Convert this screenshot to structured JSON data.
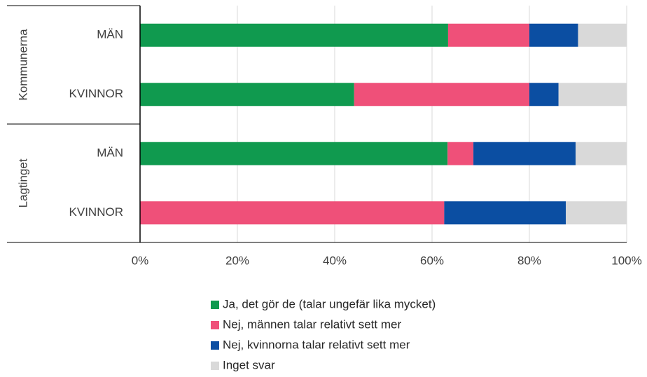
{
  "chart_data": {
    "type": "stacked-bar-horizontal",
    "groups": [
      "Kommunerna",
      "Lagtinget"
    ],
    "categories": [
      "MÄN",
      "KVINNOR",
      "MÄN",
      "KVINNOR"
    ],
    "series": [
      {
        "name": "Ja, det gör de (talar ungefär lika mycket)",
        "color": "#109a4f",
        "values": [
          63.3,
          44,
          63.2,
          0
        ]
      },
      {
        "name": "Nej, männen talar relativt sett mer",
        "color": "#ef5079",
        "values": [
          16.7,
          36,
          5.3,
          62.5
        ]
      },
      {
        "name": "Nej, kvinnorna talar relativt sett mer",
        "color": "#0b4ea2",
        "values": [
          10,
          6,
          21,
          25
        ]
      },
      {
        "name": "Inget svar",
        "color": "#d9d9d9",
        "values": [
          10,
          14,
          10.5,
          12.5
        ]
      }
    ],
    "xlim": [
      0,
      100
    ],
    "xticks": [
      {
        "value": 0,
        "label": "0%"
      },
      {
        "value": 20,
        "label": "20%"
      },
      {
        "value": 40,
        "label": "40%"
      },
      {
        "value": 60,
        "label": "60%"
      },
      {
        "value": 80,
        "label": "80%"
      },
      {
        "value": 100,
        "label": "100%"
      }
    ],
    "grid": true
  }
}
